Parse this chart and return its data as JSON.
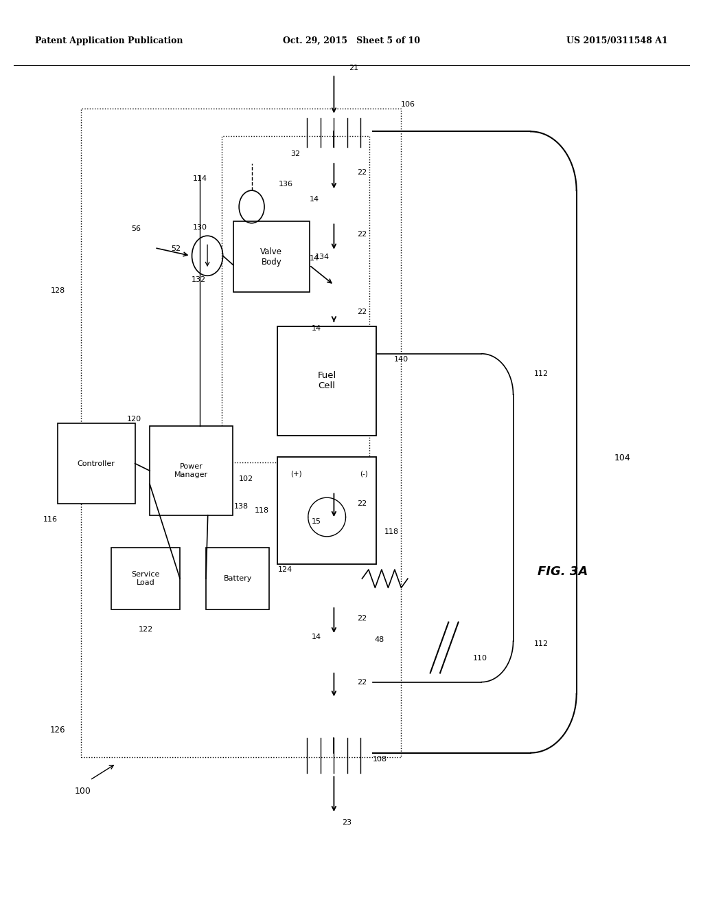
{
  "title_left": "Patent Application Publication",
  "title_center": "Oct. 29, 2015   Sheet 5 of 10",
  "title_right": "US 2015/0311548 A1",
  "fig_label": "FIG. 3A",
  "bg_color": "#ffffff"
}
